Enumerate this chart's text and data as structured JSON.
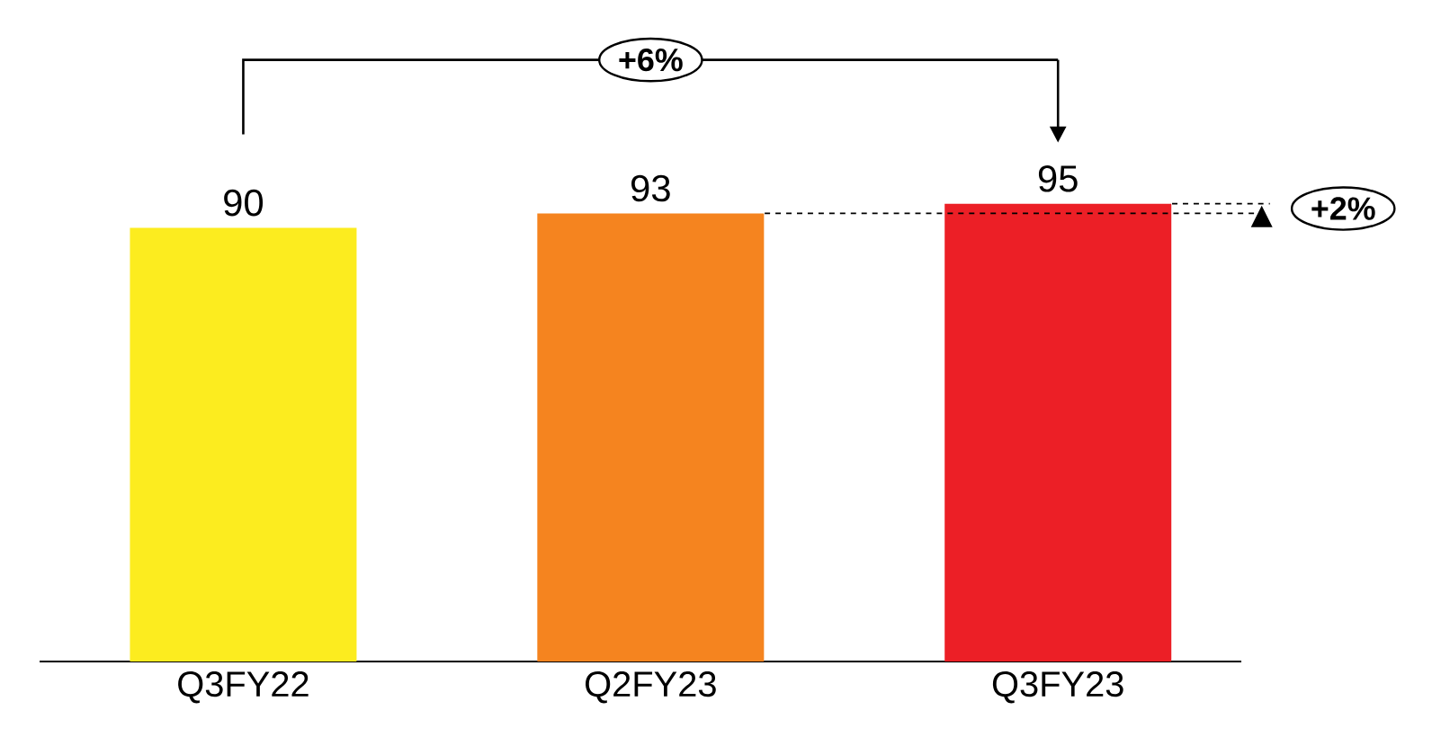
{
  "chart_data": {
    "type": "bar",
    "categories": [
      "Q3FY22",
      "Q2FY23",
      "Q3FY23"
    ],
    "values": [
      90,
      93,
      95
    ],
    "colors": [
      "#fcec1f",
      "#f5841f",
      "#ec1f26"
    ],
    "data_labels": true,
    "ref_lines": [
      {
        "axis": "y",
        "value": 93,
        "line_style": "dashed"
      }
    ],
    "annotations": [
      "+6%",
      "+2%"
    ]
  }
}
